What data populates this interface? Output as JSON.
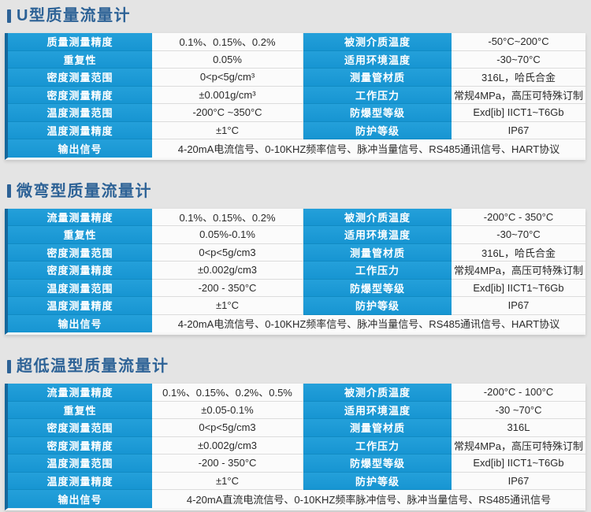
{
  "colors": {
    "page_background": "#e4e4e4",
    "label_cell_blue": "#1b9ad6",
    "table_left_border_blue": "#14679c",
    "title_navy_blue": "#2d6296",
    "value_cell_background": "#fbfbfb"
  },
  "sections": [
    {
      "title": "U型质量流量计",
      "rows": [
        {
          "l1": "质量测量精度",
          "v1": "0.1%、0.15%、0.2%",
          "l2": "被测介质温度",
          "v2": "-50°C~200°C"
        },
        {
          "l1": "重复性",
          "v1": "0.05%",
          "l2": "适用环境温度",
          "v2": "-30~70°C"
        },
        {
          "l1": "密度测量范围",
          "v1": "0<p<5g/cm³",
          "l2": "测量管材质",
          "v2": "316L，哈氏合金"
        },
        {
          "l1": "密度测量精度",
          "v1": "±0.001g/cm³",
          "l2": "工作压力",
          "v2": "常规4MPa，高压可特殊订制"
        },
        {
          "l1": "温度测量范围",
          "v1": "-200°C ~350°C",
          "l2": "防爆型等级",
          "v2": "Exd[ib] IICT1~T6Gb"
        },
        {
          "l1": "温度测量精度",
          "v1": "±1°C",
          "l2": "防护等级",
          "v2": "IP67"
        }
      ],
      "footer": {
        "label": "输出信号",
        "value": "4-20mA电流信号、0-10KHZ频率信号、脉冲当量信号、RS485通讯信号、HART协议"
      }
    },
    {
      "title": "微弯型质量流量计",
      "rows": [
        {
          "l1": "流量测量精度",
          "v1": "0.1%、0.15%、0.2%",
          "l2": "被测介质温度",
          "v2": "-200°C - 350°C"
        },
        {
          "l1": "重复性",
          "v1": "0.05%-0.1%",
          "l2": "适用环境温度",
          "v2": "-30~70°C"
        },
        {
          "l1": "密度测量范围",
          "v1": "0<p<5g/cm3",
          "l2": "测量管材质",
          "v2": "316L，哈氏合金"
        },
        {
          "l1": "密度测量精度",
          "v1": "±0.002g/cm3",
          "l2": "工作压力",
          "v2": "常规4MPa，高压可特殊订制"
        },
        {
          "l1": "温度测量范围",
          "v1": "-200 - 350°C",
          "l2": "防爆型等级",
          "v2": "Exd[ib] IICT1~T6Gb"
        },
        {
          "l1": "温度测量精度",
          "v1": "±1°C",
          "l2": "防护等级",
          "v2": "IP67"
        }
      ],
      "footer": {
        "label": "输出信号",
        "value": "4-20mA电流信号、0-10KHZ频率信号、脉冲当量信号、RS485通讯信号、HART协议"
      }
    },
    {
      "title": "超低温型质量流量计",
      "rows": [
        {
          "l1": "流量测量精度",
          "v1": "0.1%、0.15%、0.2%、0.5%",
          "l2": "被测介质温度",
          "v2": "-200°C - 100°C"
        },
        {
          "l1": "重复性",
          "v1": "±0.05-0.1%",
          "l2": "适用环境温度",
          "v2": "-30 ~70°C"
        },
        {
          "l1": "密度测量范围",
          "v1": "0<p<5g/cm3",
          "l2": "测量管材质",
          "v2": "316L"
        },
        {
          "l1": "密度测量精度",
          "v1": "±0.002g/cm3",
          "l2": "工作压力",
          "v2": "常规4MPa，高压可特殊订制"
        },
        {
          "l1": "温度测量范围",
          "v1": "-200 - 350°C",
          "l2": "防爆型等级",
          "v2": "Exd[ib] IICT1~T6Gb"
        },
        {
          "l1": "温度测量精度",
          "v1": "±1°C",
          "l2": "防护等级",
          "v2": "IP67"
        }
      ],
      "footer": {
        "label": "输出信号",
        "value": "4-20mA直流电流信号、0-10KHZ频率脉冲信号、脉冲当量信号、RS485通讯信号"
      }
    }
  ]
}
